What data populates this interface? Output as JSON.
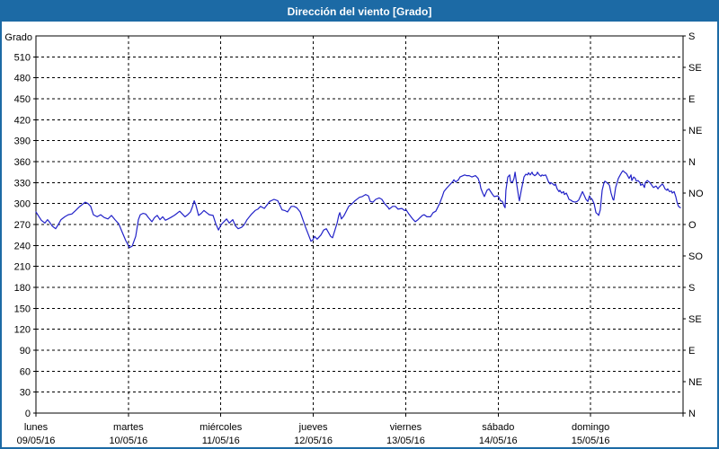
{
  "window": {
    "title": "Dirección del viento [Grado]"
  },
  "colors": {
    "titlebar_bg": "#1c6aa5",
    "titlebar_text": "#ffffff",
    "border": "#1c6aa5",
    "plot_bg": "#ffffff",
    "line": "#2222c8",
    "grid": "#000000",
    "frame": "#000000",
    "text": "#000000"
  },
  "chart_data": {
    "type": "line",
    "title": "Dirección del viento [Grado]",
    "ylabel": "Grado",
    "ylim": [
      0,
      540
    ],
    "xlim_hours": [
      0,
      168
    ],
    "grid": "dashed",
    "y_left_ticks": [
      0,
      30,
      60,
      90,
      120,
      150,
      180,
      210,
      240,
      270,
      300,
      330,
      360,
      390,
      420,
      450,
      480,
      510
    ],
    "y_right_ticks": [
      {
        "deg": 0,
        "label": "N"
      },
      {
        "deg": 45,
        "label": "NE"
      },
      {
        "deg": 90,
        "label": "E"
      },
      {
        "deg": 135,
        "label": "SE"
      },
      {
        "deg": 180,
        "label": "S"
      },
      {
        "deg": 225,
        "label": "SO"
      },
      {
        "deg": 270,
        "label": "O"
      },
      {
        "deg": 315,
        "label": "NO"
      },
      {
        "deg": 360,
        "label": "N"
      },
      {
        "deg": 405,
        "label": "NE"
      },
      {
        "deg": 450,
        "label": "E"
      },
      {
        "deg": 495,
        "label": "SE"
      },
      {
        "deg": 540,
        "label": "S"
      }
    ],
    "x_days": [
      {
        "name": "lunes",
        "date": "09/05/16"
      },
      {
        "name": "martes",
        "date": "10/05/16"
      },
      {
        "name": "miércoles",
        "date": "11/05/16"
      },
      {
        "name": "jueves",
        "date": "12/05/16"
      },
      {
        "name": "viernes",
        "date": "13/05/16"
      },
      {
        "name": "sábado",
        "date": "14/05/16"
      },
      {
        "name": "domingo",
        "date": "15/05/16"
      }
    ],
    "series": [
      {
        "name": "Dirección del viento",
        "color": "#2222c8",
        "points": [
          [
            0,
            288
          ],
          [
            0.7,
            282
          ],
          [
            1.4,
            276
          ],
          [
            2.3,
            272
          ],
          [
            3,
            277
          ],
          [
            3.7,
            272
          ],
          [
            4.2,
            268
          ],
          [
            5.1,
            264
          ],
          [
            5.8,
            270
          ],
          [
            6.5,
            277
          ],
          [
            7.5,
            281
          ],
          [
            8.4,
            284
          ],
          [
            9.3,
            285
          ],
          [
            10.3,
            290
          ],
          [
            11.2,
            295
          ],
          [
            12.1,
            299
          ],
          [
            12.8,
            302
          ],
          [
            13.5,
            300
          ],
          [
            14.2,
            296
          ],
          [
            14.9,
            284
          ],
          [
            15.9,
            281
          ],
          [
            16.8,
            284
          ],
          [
            17.7,
            280
          ],
          [
            18.7,
            278
          ],
          [
            19.6,
            283
          ],
          [
            20.5,
            277
          ],
          [
            21.5,
            271
          ],
          [
            22.4,
            259
          ],
          [
            23.3,
            247
          ],
          [
            24.3,
            237
          ],
          [
            25,
            239
          ],
          [
            25.9,
            253
          ],
          [
            26.6,
            277
          ],
          [
            27.1,
            284
          ],
          [
            27.8,
            286
          ],
          [
            28.5,
            285
          ],
          [
            29.2,
            280
          ],
          [
            30.1,
            274
          ],
          [
            30.8,
            280
          ],
          [
            31.5,
            283
          ],
          [
            32.2,
            277
          ],
          [
            32.9,
            281
          ],
          [
            33.6,
            276
          ],
          [
            34.3,
            278
          ],
          [
            35,
            280
          ],
          [
            35.9,
            283
          ],
          [
            36.6,
            286
          ],
          [
            37.3,
            289
          ],
          [
            38,
            285
          ],
          [
            38.7,
            281
          ],
          [
            39.4,
            284
          ],
          [
            40.1,
            288
          ],
          [
            40.6,
            295
          ],
          [
            41.1,
            304
          ],
          [
            41.5,
            298
          ],
          [
            42.2,
            283
          ],
          [
            42.9,
            286
          ],
          [
            43.6,
            290
          ],
          [
            44.3,
            287
          ],
          [
            45,
            284
          ],
          [
            46,
            283
          ],
          [
            46.7,
            271
          ],
          [
            47.4,
            262
          ],
          [
            48.1,
            270
          ],
          [
            48.8,
            274
          ],
          [
            49.5,
            278
          ],
          [
            50.2,
            272
          ],
          [
            51.1,
            277
          ],
          [
            51.8,
            268
          ],
          [
            52.5,
            264
          ],
          [
            53.4,
            266
          ],
          [
            54.1,
            270
          ],
          [
            54.8,
            277
          ],
          [
            56,
            285
          ],
          [
            56.9,
            290
          ],
          [
            57.6,
            292
          ],
          [
            58.3,
            296
          ],
          [
            59.3,
            293
          ],
          [
            60,
            298
          ],
          [
            60.7,
            303
          ],
          [
            61.8,
            306
          ],
          [
            62.8,
            304
          ],
          [
            63.9,
            291
          ],
          [
            64.6,
            290
          ],
          [
            65.3,
            288
          ],
          [
            66.3,
            296
          ],
          [
            67,
            296
          ],
          [
            67.7,
            294
          ],
          [
            68.6,
            288
          ],
          [
            69.3,
            277
          ],
          [
            70,
            266
          ],
          [
            70.9,
            253
          ],
          [
            71.4,
            246
          ],
          [
            71.9,
            248
          ],
          [
            72.3,
            253
          ],
          [
            73,
            249
          ],
          [
            74,
            255
          ],
          [
            74.7,
            262
          ],
          [
            75.4,
            264
          ],
          [
            76.5,
            253
          ],
          [
            77,
            251
          ],
          [
            78.2,
            272
          ],
          [
            78.6,
            283
          ],
          [
            78.9,
            287
          ],
          [
            79.3,
            278
          ],
          [
            80,
            283
          ],
          [
            81.2,
            296
          ],
          [
            82.1,
            300
          ],
          [
            82.8,
            304
          ],
          [
            84,
            309
          ],
          [
            84.7,
            310
          ],
          [
            85.6,
            313
          ],
          [
            86.3,
            311
          ],
          [
            86.8,
            303
          ],
          [
            87.5,
            302
          ],
          [
            88.2,
            306
          ],
          [
            89.1,
            308
          ],
          [
            89.8,
            306
          ],
          [
            90.5,
            300
          ],
          [
            91.5,
            294
          ],
          [
            91.7,
            292
          ],
          [
            92.6,
            296
          ],
          [
            93.3,
            296
          ],
          [
            94,
            292
          ],
          [
            95,
            293
          ],
          [
            95.7,
            290
          ],
          [
            96.1,
            291
          ],
          [
            96.8,
            285
          ],
          [
            97.8,
            278
          ],
          [
            98.5,
            274
          ],
          [
            99.2,
            277
          ],
          [
            100.3,
            283
          ],
          [
            100.8,
            284
          ],
          [
            101.5,
            281
          ],
          [
            102.4,
            281
          ],
          [
            103.1,
            287
          ],
          [
            103.8,
            289
          ],
          [
            104.8,
            300
          ],
          [
            105.5,
            310
          ],
          [
            105.9,
            317
          ],
          [
            106.6,
            322
          ],
          [
            107.3,
            326
          ],
          [
            108.3,
            332
          ],
          [
            108.5,
            334
          ],
          [
            109,
            331
          ],
          [
            109.7,
            334
          ],
          [
            110.1,
            338
          ],
          [
            111.3,
            341
          ],
          [
            111.8,
            340
          ],
          [
            112.5,
            340
          ],
          [
            113.2,
            338
          ],
          [
            114.1,
            340
          ],
          [
            114.8,
            336
          ],
          [
            115.3,
            328
          ],
          [
            115.5,
            322
          ],
          [
            116,
            315
          ],
          [
            116.4,
            310
          ],
          [
            117.1,
            319
          ],
          [
            117.6,
            321
          ],
          [
            118.3,
            315
          ],
          [
            118.8,
            311
          ],
          [
            119,
            310
          ],
          [
            119.9,
            311
          ],
          [
            120.2,
            309
          ],
          [
            120.6,
            304
          ],
          [
            121.1,
            303
          ],
          [
            121.6,
            296
          ],
          [
            121.8,
            294
          ],
          [
            122,
            319
          ],
          [
            122.5,
            338
          ],
          [
            123,
            341
          ],
          [
            123.2,
            332
          ],
          [
            123.7,
            330
          ],
          [
            124.1,
            336
          ],
          [
            124.4,
            345
          ],
          [
            124.8,
            328
          ],
          [
            125.3,
            310
          ],
          [
            125.5,
            304
          ],
          [
            126,
            319
          ],
          [
            126.5,
            332
          ],
          [
            126.7,
            338
          ],
          [
            127.2,
            342
          ],
          [
            127.6,
            341
          ],
          [
            127.9,
            344
          ],
          [
            128.3,
            341
          ],
          [
            128.8,
            345
          ],
          [
            129,
            342
          ],
          [
            129.5,
            340
          ],
          [
            130,
            342
          ],
          [
            130.2,
            345
          ],
          [
            130.7,
            341
          ],
          [
            131.1,
            339
          ],
          [
            131.4,
            341
          ],
          [
            131.8,
            340
          ],
          [
            132.3,
            341
          ],
          [
            132.5,
            339
          ],
          [
            133,
            332
          ],
          [
            133.5,
            328
          ],
          [
            133.7,
            330
          ],
          [
            134.2,
            328
          ],
          [
            134.6,
            326
          ],
          [
            134.9,
            328
          ],
          [
            135.3,
            321
          ],
          [
            135.8,
            317
          ],
          [
            136,
            319
          ],
          [
            136.5,
            315
          ],
          [
            137,
            317
          ],
          [
            137.2,
            313
          ],
          [
            137.7,
            315
          ],
          [
            138.1,
            310
          ],
          [
            138.4,
            306
          ],
          [
            138.8,
            305
          ],
          [
            139.3,
            303
          ],
          [
            140,
            302
          ],
          [
            140.5,
            303
          ],
          [
            140.9,
            305
          ],
          [
            141.4,
            311
          ],
          [
            141.9,
            317
          ],
          [
            142.3,
            312
          ],
          [
            142.8,
            306
          ],
          [
            143.3,
            303
          ],
          [
            143.7,
            311
          ],
          [
            144,
            308
          ],
          [
            144.4,
            306
          ],
          [
            144.9,
            300
          ],
          [
            145.4,
            287
          ],
          [
            145.8,
            285
          ],
          [
            146.1,
            283
          ],
          [
            146.5,
            291
          ],
          [
            147,
            319
          ],
          [
            147.5,
            330
          ],
          [
            147.7,
            332
          ],
          [
            148.2,
            330
          ],
          [
            148.6,
            328
          ],
          [
            148.9,
            326
          ],
          [
            149.3,
            315
          ],
          [
            149.8,
            306
          ],
          [
            150,
            305
          ],
          [
            150.3,
            315
          ],
          [
            150.5,
            323
          ],
          [
            151,
            332
          ],
          [
            151.2,
            336
          ],
          [
            151.7,
            341
          ],
          [
            152.1,
            345
          ],
          [
            152.4,
            347
          ],
          [
            152.8,
            345
          ],
          [
            153.3,
            343
          ],
          [
            153.5,
            341
          ],
          [
            154,
            336
          ],
          [
            154.5,
            341
          ],
          [
            154.7,
            333
          ],
          [
            155.2,
            338
          ],
          [
            155.6,
            336
          ],
          [
            155.9,
            332
          ],
          [
            156.3,
            333
          ],
          [
            156.8,
            330
          ],
          [
            157,
            326
          ],
          [
            157.5,
            328
          ],
          [
            158,
            323
          ],
          [
            158.2,
            330
          ],
          [
            158.7,
            333
          ],
          [
            159.4,
            330
          ],
          [
            160.3,
            323
          ],
          [
            161,
            325
          ],
          [
            161.5,
            321
          ],
          [
            161.7,
            323
          ],
          [
            162.6,
            328
          ],
          [
            162.9,
            326
          ],
          [
            163.3,
            321
          ],
          [
            163.8,
            319
          ],
          [
            164,
            321
          ],
          [
            164.5,
            317
          ],
          [
            165,
            318
          ],
          [
            165.2,
            315
          ],
          [
            165.7,
            317
          ],
          [
            166.1,
            310
          ],
          [
            166.4,
            303
          ],
          [
            166.8,
            296
          ],
          [
            167.3,
            294
          ]
        ]
      }
    ]
  }
}
